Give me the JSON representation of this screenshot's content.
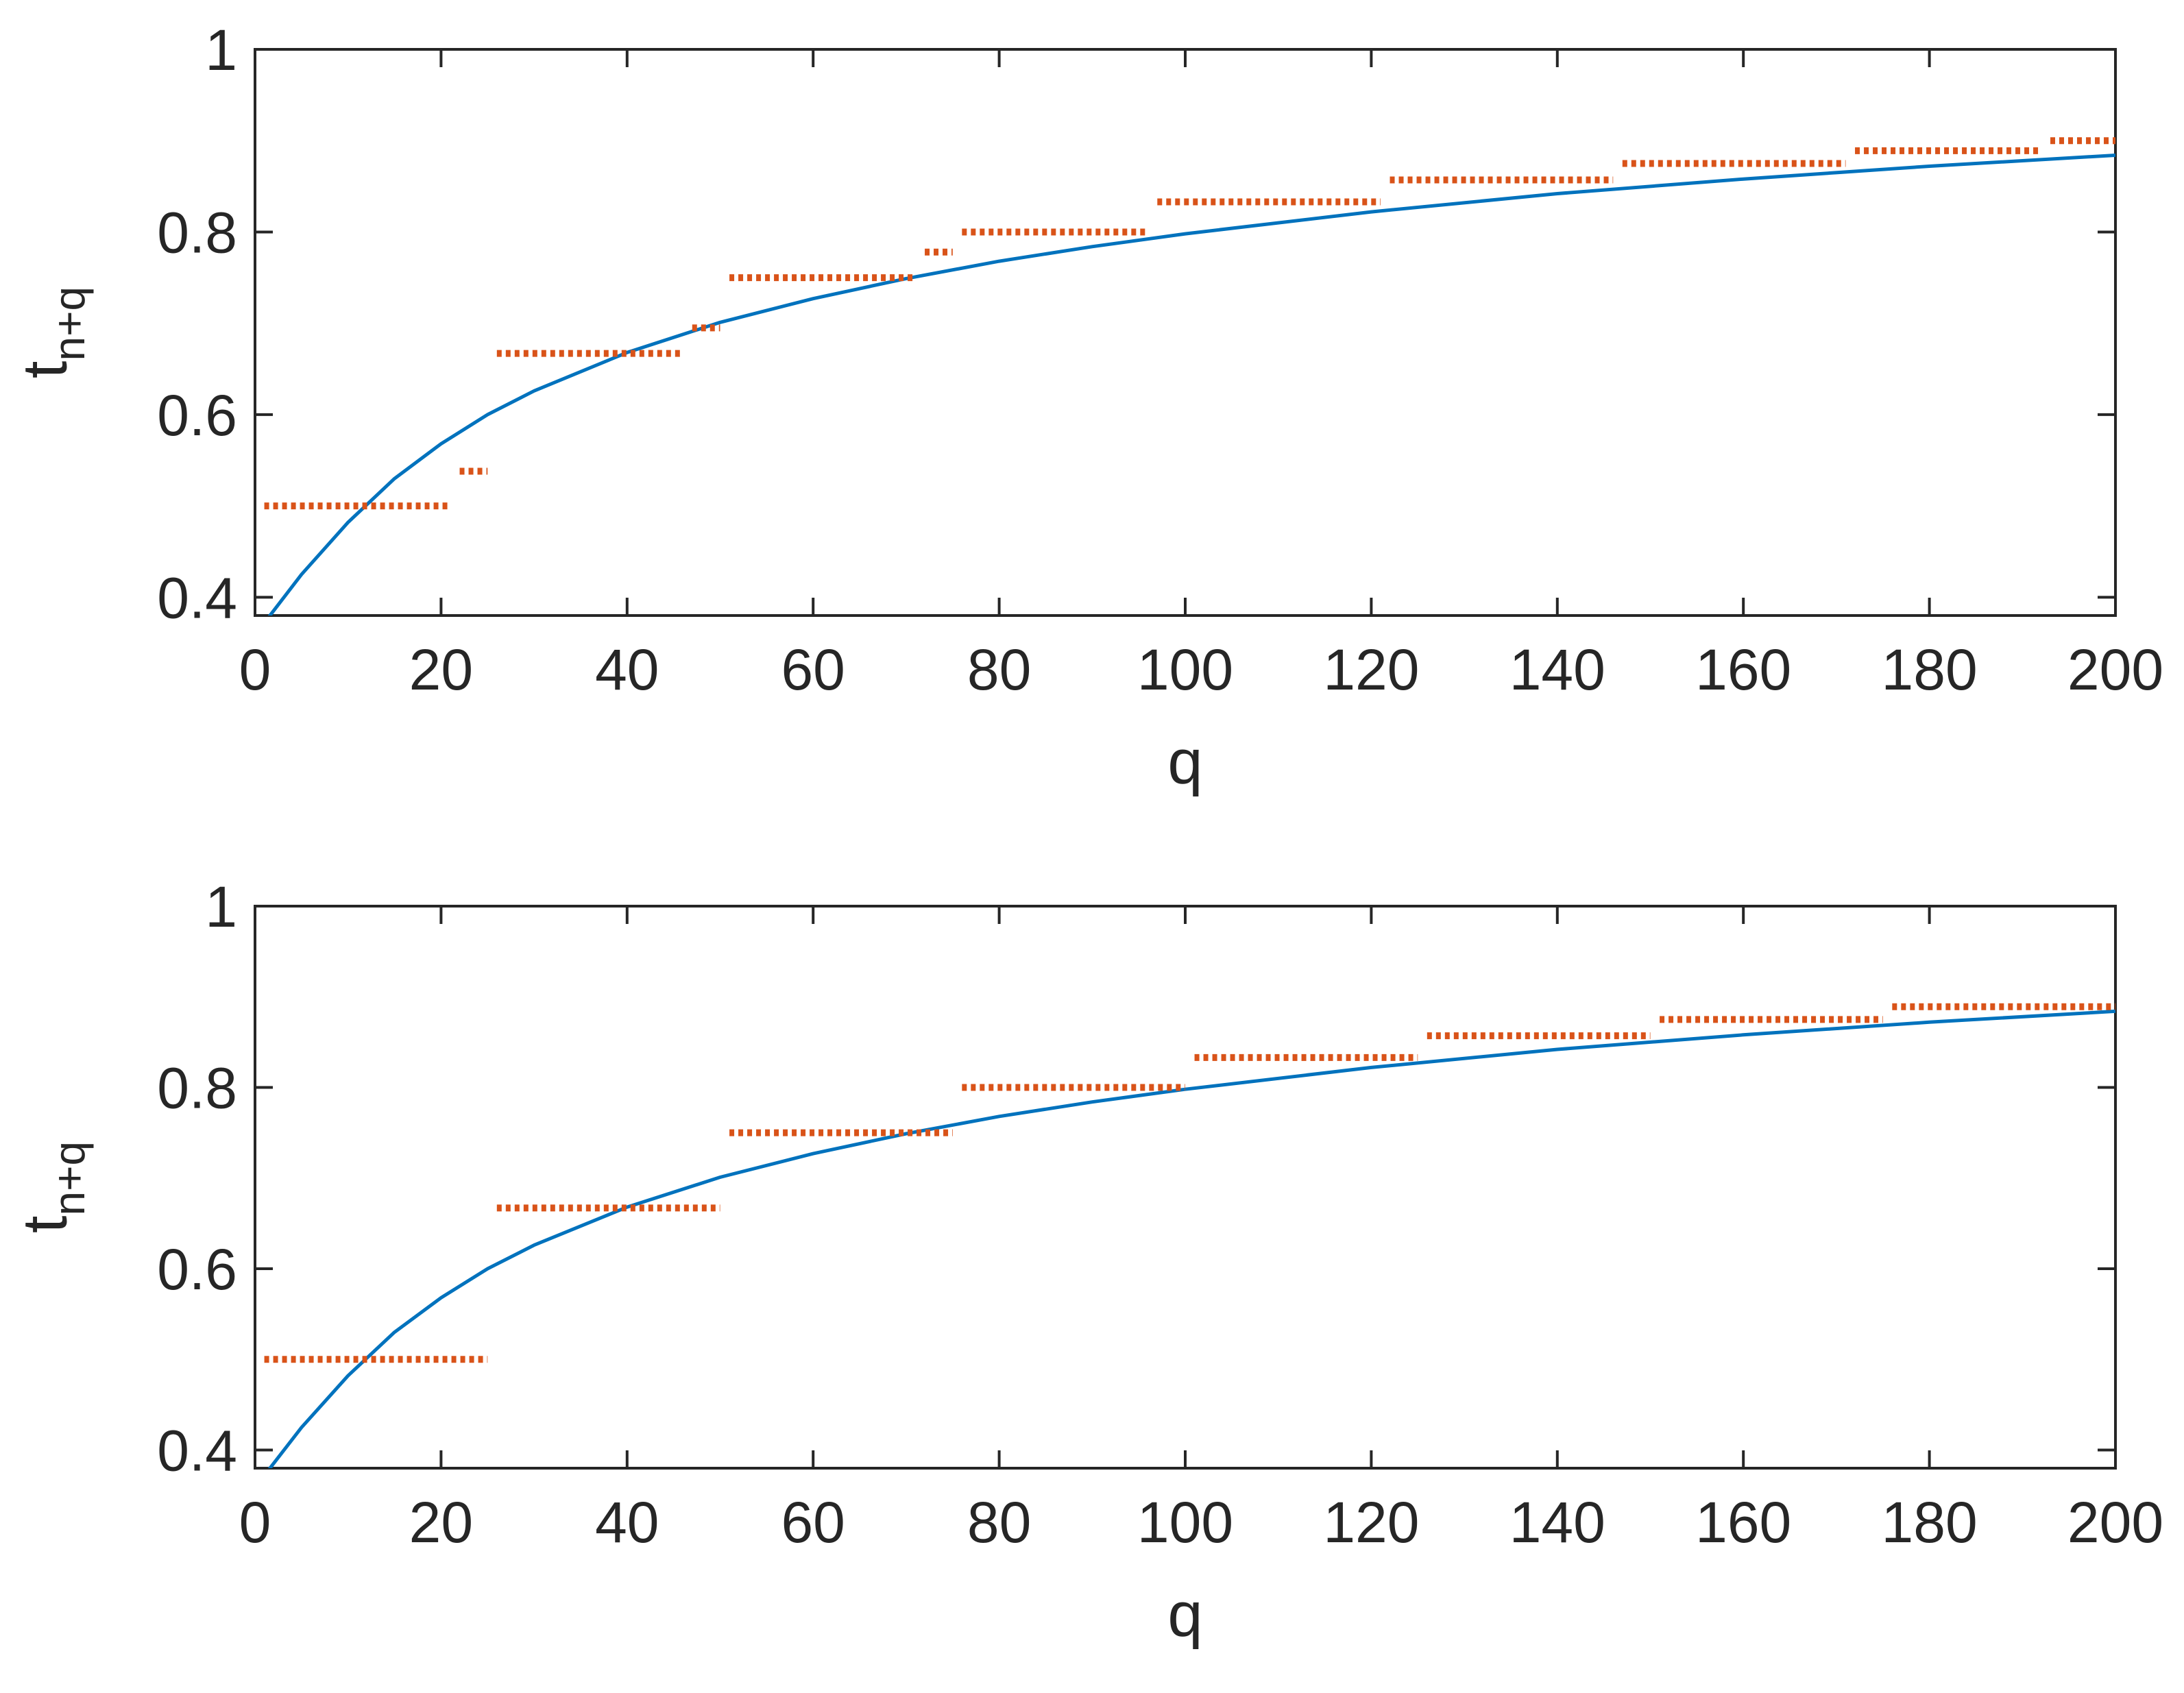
{
  "colors": {
    "curve": "#0072bd",
    "steps": "#d95319",
    "axis": "#262626",
    "background": "#ffffff"
  },
  "chart_data": [
    {
      "type": "line",
      "xlabel": "q",
      "ylabel_base": "t",
      "ylabel_sub": "n+q",
      "xlim": [
        0,
        200
      ],
      "ylim": [
        0.38,
        1
      ],
      "xticks": [
        "0",
        "20",
        "40",
        "60",
        "80",
        "100",
        "120",
        "140",
        "160",
        "180",
        "200"
      ],
      "yticks": [
        "0.4",
        "0.6",
        "0.8",
        "1"
      ],
      "grid": false,
      "legend": "none",
      "series": [
        {
          "kind": "smooth-curve",
          "x": [
            1,
            5,
            10,
            15,
            20,
            25,
            30,
            40,
            50,
            60,
            70,
            80,
            90,
            100,
            120,
            140,
            160,
            180,
            200
          ],
          "y": [
            0.372,
            0.425,
            0.482,
            0.53,
            0.568,
            0.6,
            0.626,
            0.668,
            0.701,
            0.727,
            0.749,
            0.768,
            0.784,
            0.798,
            0.822,
            0.842,
            0.858,
            0.872,
            0.884
          ]
        },
        {
          "kind": "step-markers",
          "segments": [
            {
              "x0": 1,
              "x1": 21,
              "y": 0.5
            },
            {
              "x0": 22,
              "x1": 25,
              "y": 0.538
            },
            {
              "x0": 26,
              "x1": 46,
              "y": 0.667
            },
            {
              "x0": 47,
              "x1": 50,
              "y": 0.695
            },
            {
              "x0": 51,
              "x1": 71,
              "y": 0.75
            },
            {
              "x0": 72,
              "x1": 75,
              "y": 0.778
            },
            {
              "x0": 76,
              "x1": 96,
              "y": 0.8
            },
            {
              "x0": 97,
              "x1": 121,
              "y": 0.833
            },
            {
              "x0": 122,
              "x1": 146,
              "y": 0.857
            },
            {
              "x0": 147,
              "x1": 171,
              "y": 0.875
            },
            {
              "x0": 172,
              "x1": 192,
              "y": 0.889
            },
            {
              "x0": 193,
              "x1": 200,
              "y": 0.9
            }
          ]
        }
      ]
    },
    {
      "type": "line",
      "xlabel": "q",
      "ylabel_base": "t",
      "ylabel_sub": "n+q",
      "xlim": [
        0,
        200
      ],
      "ylim": [
        0.38,
        1
      ],
      "xticks": [
        "0",
        "20",
        "40",
        "60",
        "80",
        "100",
        "120",
        "140",
        "160",
        "180",
        "200"
      ],
      "yticks": [
        "0.4",
        "0.6",
        "0.8",
        "1"
      ],
      "grid": false,
      "legend": "none",
      "series": [
        {
          "kind": "smooth-curve",
          "x": [
            1,
            5,
            10,
            15,
            20,
            25,
            30,
            40,
            50,
            60,
            70,
            80,
            90,
            100,
            120,
            140,
            160,
            180,
            200
          ],
          "y": [
            0.372,
            0.425,
            0.482,
            0.53,
            0.568,
            0.6,
            0.626,
            0.668,
            0.701,
            0.727,
            0.749,
            0.768,
            0.784,
            0.798,
            0.822,
            0.842,
            0.858,
            0.872,
            0.884
          ]
        },
        {
          "kind": "step-markers",
          "segments": [
            {
              "x0": 1,
              "x1": 25,
              "y": 0.5
            },
            {
              "x0": 26,
              "x1": 50,
              "y": 0.667
            },
            {
              "x0": 51,
              "x1": 75,
              "y": 0.75
            },
            {
              "x0": 76,
              "x1": 100,
              "y": 0.8
            },
            {
              "x0": 101,
              "x1": 125,
              "y": 0.833
            },
            {
              "x0": 126,
              "x1": 150,
              "y": 0.857
            },
            {
              "x0": 151,
              "x1": 175,
              "y": 0.875
            },
            {
              "x0": 176,
              "x1": 200,
              "y": 0.889
            }
          ]
        }
      ]
    }
  ]
}
